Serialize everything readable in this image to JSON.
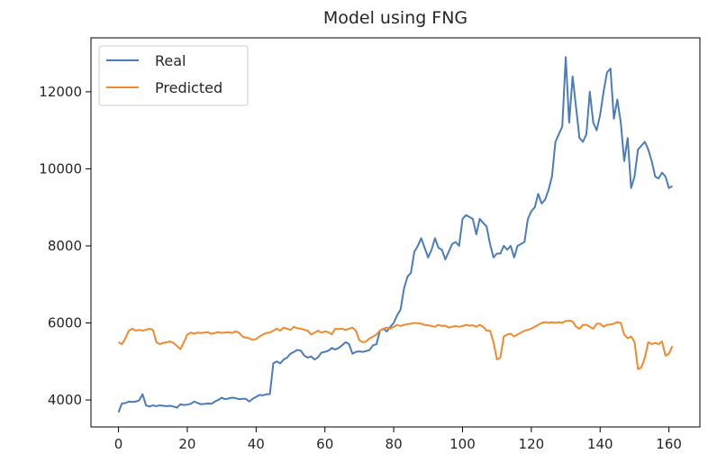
{
  "chart_data": {
    "type": "line",
    "title": "Model using FNG",
    "xlabel": "",
    "ylabel": "",
    "xlim": [
      -8,
      169
    ],
    "ylim": [
      3300,
      13400
    ],
    "x_ticks": [
      0,
      20,
      40,
      60,
      80,
      100,
      120,
      140,
      160
    ],
    "y_ticks": [
      4000,
      6000,
      8000,
      10000,
      12000
    ],
    "grid": false,
    "legend_position": "top-left",
    "series": [
      {
        "name": "Real",
        "color": "#4c7cba",
        "points": [
          [
            0,
            3680
          ],
          [
            1,
            3910
          ],
          [
            2,
            3920
          ],
          [
            3,
            3960
          ],
          [
            4,
            3950
          ],
          [
            5,
            3960
          ],
          [
            6,
            3990
          ],
          [
            7,
            4150
          ],
          [
            8,
            3860
          ],
          [
            9,
            3830
          ],
          [
            10,
            3860
          ],
          [
            11,
            3840
          ],
          [
            12,
            3860
          ],
          [
            13,
            3850
          ],
          [
            14,
            3840
          ],
          [
            15,
            3850
          ],
          [
            16,
            3830
          ],
          [
            17,
            3800
          ],
          [
            18,
            3890
          ],
          [
            19,
            3870
          ],
          [
            20,
            3880
          ],
          [
            21,
            3900
          ],
          [
            22,
            3960
          ],
          [
            23,
            3920
          ],
          [
            24,
            3890
          ],
          [
            25,
            3900
          ],
          [
            26,
            3910
          ],
          [
            27,
            3900
          ],
          [
            28,
            3960
          ],
          [
            29,
            4000
          ],
          [
            30,
            4060
          ],
          [
            31,
            4020
          ],
          [
            32,
            4040
          ],
          [
            33,
            4060
          ],
          [
            34,
            4050
          ],
          [
            35,
            4020
          ],
          [
            36,
            4030
          ],
          [
            37,
            4030
          ],
          [
            38,
            3960
          ],
          [
            39,
            4030
          ],
          [
            40,
            4080
          ],
          [
            41,
            4130
          ],
          [
            42,
            4120
          ],
          [
            43,
            4150
          ],
          [
            44,
            4150
          ],
          [
            45,
            4950
          ],
          [
            46,
            5000
          ],
          [
            47,
            4950
          ],
          [
            48,
            5050
          ],
          [
            49,
            5100
          ],
          [
            50,
            5200
          ],
          [
            51,
            5250
          ],
          [
            52,
            5300
          ],
          [
            53,
            5280
          ],
          [
            54,
            5150
          ],
          [
            55,
            5100
          ],
          [
            56,
            5130
          ],
          [
            57,
            5050
          ],
          [
            58,
            5110
          ],
          [
            59,
            5230
          ],
          [
            60,
            5250
          ],
          [
            61,
            5280
          ],
          [
            62,
            5350
          ],
          [
            63,
            5310
          ],
          [
            64,
            5350
          ],
          [
            65,
            5420
          ],
          [
            66,
            5500
          ],
          [
            67,
            5450
          ],
          [
            68,
            5200
          ],
          [
            69,
            5250
          ],
          [
            70,
            5260
          ],
          [
            71,
            5250
          ],
          [
            72,
            5270
          ],
          [
            73,
            5300
          ],
          [
            74,
            5420
          ],
          [
            75,
            5450
          ],
          [
            76,
            5800
          ],
          [
            77,
            5850
          ],
          [
            78,
            5780
          ],
          [
            79,
            5900
          ],
          [
            80,
            6000
          ],
          [
            81,
            6200
          ],
          [
            82,
            6350
          ],
          [
            83,
            6900
          ],
          [
            84,
            7200
          ],
          [
            85,
            7300
          ],
          [
            86,
            7850
          ],
          [
            87,
            8000
          ],
          [
            88,
            8200
          ],
          [
            89,
            7950
          ],
          [
            90,
            7700
          ],
          [
            91,
            7900
          ],
          [
            92,
            8200
          ],
          [
            93,
            7950
          ],
          [
            94,
            7900
          ],
          [
            95,
            7650
          ],
          [
            96,
            7850
          ],
          [
            97,
            8050
          ],
          [
            98,
            8100
          ],
          [
            99,
            8000
          ],
          [
            100,
            8700
          ],
          [
            101,
            8800
          ],
          [
            102,
            8750
          ],
          [
            103,
            8700
          ],
          [
            104,
            8300
          ],
          [
            105,
            8700
          ],
          [
            106,
            8600
          ],
          [
            107,
            8500
          ],
          [
            108,
            8050
          ],
          [
            109,
            7700
          ],
          [
            110,
            7800
          ],
          [
            111,
            7800
          ],
          [
            112,
            8000
          ],
          [
            113,
            7900
          ],
          [
            114,
            8000
          ],
          [
            115,
            7700
          ],
          [
            116,
            8000
          ],
          [
            117,
            8050
          ],
          [
            118,
            8100
          ],
          [
            119,
            8700
          ],
          [
            120,
            8900
          ],
          [
            121,
            9000
          ],
          [
            122,
            9350
          ],
          [
            123,
            9100
          ],
          [
            124,
            9200
          ],
          [
            125,
            9450
          ],
          [
            126,
            9800
          ],
          [
            127,
            10700
          ],
          [
            128,
            10900
          ],
          [
            129,
            11100
          ],
          [
            130,
            12900
          ],
          [
            131,
            11200
          ],
          [
            132,
            12400
          ],
          [
            133,
            11600
          ],
          [
            134,
            10800
          ],
          [
            135,
            10700
          ],
          [
            136,
            10900
          ],
          [
            137,
            12000
          ],
          [
            138,
            11200
          ],
          [
            139,
            11000
          ],
          [
            140,
            11400
          ],
          [
            141,
            12000
          ],
          [
            142,
            12500
          ],
          [
            143,
            12600
          ],
          [
            144,
            11300
          ],
          [
            145,
            11800
          ],
          [
            146,
            11200
          ],
          [
            147,
            10200
          ],
          [
            148,
            10800
          ],
          [
            149,
            9500
          ],
          [
            150,
            9800
          ],
          [
            151,
            10500
          ],
          [
            152,
            10600
          ],
          [
            153,
            10700
          ],
          [
            154,
            10500
          ],
          [
            155,
            10200
          ],
          [
            156,
            9800
          ],
          [
            157,
            9750
          ],
          [
            158,
            9900
          ],
          [
            159,
            9800
          ],
          [
            160,
            9500
          ],
          [
            161,
            9550
          ]
        ]
      },
      {
        "name": "Predicted",
        "color": "#f08a2e",
        "points": [
          [
            0,
            5500
          ],
          [
            1,
            5450
          ],
          [
            2,
            5600
          ],
          [
            3,
            5800
          ],
          [
            4,
            5850
          ],
          [
            5,
            5800
          ],
          [
            6,
            5820
          ],
          [
            7,
            5800
          ],
          [
            8,
            5820
          ],
          [
            9,
            5850
          ],
          [
            10,
            5820
          ],
          [
            11,
            5500
          ],
          [
            12,
            5450
          ],
          [
            13,
            5480
          ],
          [
            14,
            5500
          ],
          [
            15,
            5520
          ],
          [
            16,
            5480
          ],
          [
            17,
            5400
          ],
          [
            18,
            5320
          ],
          [
            19,
            5500
          ],
          [
            20,
            5700
          ],
          [
            21,
            5750
          ],
          [
            22,
            5720
          ],
          [
            23,
            5750
          ],
          [
            24,
            5740
          ],
          [
            25,
            5750
          ],
          [
            26,
            5760
          ],
          [
            27,
            5720
          ],
          [
            28,
            5740
          ],
          [
            29,
            5760
          ],
          [
            30,
            5740
          ],
          [
            31,
            5750
          ],
          [
            32,
            5760
          ],
          [
            33,
            5740
          ],
          [
            34,
            5780
          ],
          [
            35,
            5750
          ],
          [
            36,
            5650
          ],
          [
            37,
            5620
          ],
          [
            38,
            5600
          ],
          [
            39,
            5560
          ],
          [
            40,
            5580
          ],
          [
            41,
            5650
          ],
          [
            42,
            5700
          ],
          [
            43,
            5740
          ],
          [
            44,
            5750
          ],
          [
            45,
            5800
          ],
          [
            46,
            5850
          ],
          [
            47,
            5800
          ],
          [
            48,
            5880
          ],
          [
            49,
            5850
          ],
          [
            50,
            5820
          ],
          [
            51,
            5900
          ],
          [
            52,
            5860
          ],
          [
            53,
            5850
          ],
          [
            54,
            5820
          ],
          [
            55,
            5800
          ],
          [
            56,
            5700
          ],
          [
            57,
            5750
          ],
          [
            58,
            5800
          ],
          [
            59,
            5750
          ],
          [
            60,
            5780
          ],
          [
            61,
            5760
          ],
          [
            62,
            5700
          ],
          [
            63,
            5850
          ],
          [
            64,
            5840
          ],
          [
            65,
            5850
          ],
          [
            66,
            5820
          ],
          [
            67,
            5850
          ],
          [
            68,
            5880
          ],
          [
            69,
            5800
          ],
          [
            70,
            5550
          ],
          [
            71,
            5500
          ],
          [
            72,
            5520
          ],
          [
            73,
            5600
          ],
          [
            74,
            5650
          ],
          [
            75,
            5700
          ],
          [
            76,
            5800
          ],
          [
            77,
            5850
          ],
          [
            78,
            5880
          ],
          [
            79,
            5850
          ],
          [
            80,
            5900
          ],
          [
            81,
            5950
          ],
          [
            82,
            5920
          ],
          [
            83,
            5950
          ],
          [
            84,
            5970
          ],
          [
            85,
            5980
          ],
          [
            86,
            6000
          ],
          [
            87,
            5990
          ],
          [
            88,
            5980
          ],
          [
            89,
            5950
          ],
          [
            90,
            5940
          ],
          [
            91,
            5920
          ],
          [
            92,
            5900
          ],
          [
            93,
            5950
          ],
          [
            94,
            5920
          ],
          [
            95,
            5930
          ],
          [
            96,
            5880
          ],
          [
            97,
            5900
          ],
          [
            98,
            5920
          ],
          [
            99,
            5900
          ],
          [
            100,
            5920
          ],
          [
            101,
            5950
          ],
          [
            102,
            5930
          ],
          [
            103,
            5940
          ],
          [
            104,
            5900
          ],
          [
            105,
            5950
          ],
          [
            106,
            5900
          ],
          [
            107,
            5800
          ],
          [
            108,
            5800
          ],
          [
            109,
            5500
          ],
          [
            110,
            5050
          ],
          [
            111,
            5100
          ],
          [
            112,
            5650
          ],
          [
            113,
            5700
          ],
          [
            114,
            5720
          ],
          [
            115,
            5650
          ],
          [
            116,
            5700
          ],
          [
            117,
            5750
          ],
          [
            118,
            5800
          ],
          [
            119,
            5820
          ],
          [
            120,
            5850
          ],
          [
            121,
            5900
          ],
          [
            122,
            5950
          ],
          [
            123,
            6000
          ],
          [
            124,
            6020
          ],
          [
            125,
            6000
          ],
          [
            126,
            6020
          ],
          [
            127,
            6000
          ],
          [
            128,
            6020
          ],
          [
            129,
            6000
          ],
          [
            130,
            6050
          ],
          [
            131,
            6060
          ],
          [
            132,
            6040
          ],
          [
            133,
            5900
          ],
          [
            134,
            5850
          ],
          [
            135,
            5950
          ],
          [
            136,
            5950
          ],
          [
            137,
            5900
          ],
          [
            138,
            5850
          ],
          [
            139,
            5980
          ],
          [
            140,
            5980
          ],
          [
            141,
            5900
          ],
          [
            142,
            5950
          ],
          [
            143,
            5960
          ],
          [
            144,
            5980
          ],
          [
            145,
            6020
          ],
          [
            146,
            6000
          ],
          [
            147,
            5700
          ],
          [
            148,
            5600
          ],
          [
            149,
            5650
          ],
          [
            150,
            5500
          ],
          [
            151,
            4800
          ],
          [
            152,
            4850
          ],
          [
            153,
            5100
          ],
          [
            154,
            5500
          ],
          [
            155,
            5450
          ],
          [
            156,
            5480
          ],
          [
            157,
            5450
          ],
          [
            158,
            5520
          ],
          [
            159,
            5150
          ],
          [
            160,
            5200
          ],
          [
            161,
            5400
          ]
        ]
      }
    ]
  }
}
